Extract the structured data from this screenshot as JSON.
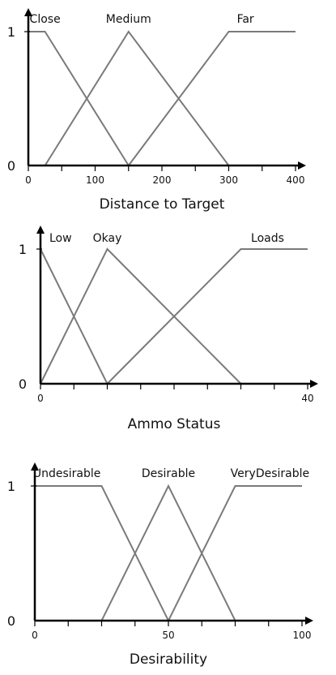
{
  "chart_data": [
    {
      "type": "line",
      "xlabel": "Distance to Target",
      "ylabel": "",
      "xlim": [
        0,
        400
      ],
      "ylim": [
        0,
        1
      ],
      "x_ticks": [
        0,
        100,
        200,
        300,
        400
      ],
      "x_tick_labels": [
        "0",
        "100",
        "200",
        "300",
        "400"
      ],
      "minor_step": 50,
      "y_tick_labels": [
        "0",
        "1"
      ],
      "grid": false,
      "series": [
        {
          "name": "Close",
          "points": [
            [
              0,
              1
            ],
            [
              25,
              1
            ],
            [
              150,
              0
            ]
          ]
        },
        {
          "name": "Medium",
          "points": [
            [
              25,
              0
            ],
            [
              150,
              1
            ],
            [
              300,
              0
            ]
          ]
        },
        {
          "name": "Far",
          "points": [
            [
              150,
              0
            ],
            [
              300,
              1
            ],
            [
              400,
              1
            ]
          ]
        }
      ],
      "label_anchors": [
        25,
        150,
        325
      ]
    },
    {
      "type": "line",
      "xlabel": "Ammo Status",
      "ylabel": "",
      "xlim": [
        0,
        40
      ],
      "ylim": [
        0,
        1
      ],
      "x_ticks": [
        0,
        40
      ],
      "x_tick_labels": [
        "0",
        "40"
      ],
      "minor_step": 5,
      "y_tick_labels": [
        "0",
        "1"
      ],
      "grid": false,
      "series": [
        {
          "name": "Low",
          "points": [
            [
              0,
              1
            ],
            [
              10,
              0
            ]
          ]
        },
        {
          "name": "Okay",
          "points": [
            [
              0,
              0
            ],
            [
              10,
              1
            ],
            [
              30,
              0
            ]
          ]
        },
        {
          "name": "Loads",
          "points": [
            [
              10,
              0
            ],
            [
              30,
              1
            ],
            [
              40,
              1
            ]
          ]
        }
      ],
      "label_anchors": [
        3,
        10,
        34
      ]
    },
    {
      "type": "line",
      "xlabel": "Desirability",
      "ylabel": "",
      "xlim": [
        0,
        100
      ],
      "ylim": [
        0,
        1
      ],
      "x_ticks": [
        0,
        50,
        100
      ],
      "x_tick_labels": [
        "0",
        "50",
        "100"
      ],
      "minor_step": 12.5,
      "y_tick_labels": [
        "0",
        "1"
      ],
      "grid": false,
      "series": [
        {
          "name": "Undesirable",
          "points": [
            [
              0,
              1
            ],
            [
              25,
              1
            ],
            [
              50,
              0
            ]
          ]
        },
        {
          "name": "Desirable",
          "points": [
            [
              25,
              0
            ],
            [
              50,
              1
            ],
            [
              75,
              0
            ]
          ]
        },
        {
          "name": "VeryDesirable",
          "points": [
            [
              50,
              0
            ],
            [
              75,
              1
            ],
            [
              100,
              1
            ]
          ]
        }
      ],
      "label_anchors": [
        12,
        50,
        88
      ]
    }
  ],
  "colors": {
    "axis": "#000000",
    "membership_line": "#7a7a7a",
    "text": "#111111"
  }
}
